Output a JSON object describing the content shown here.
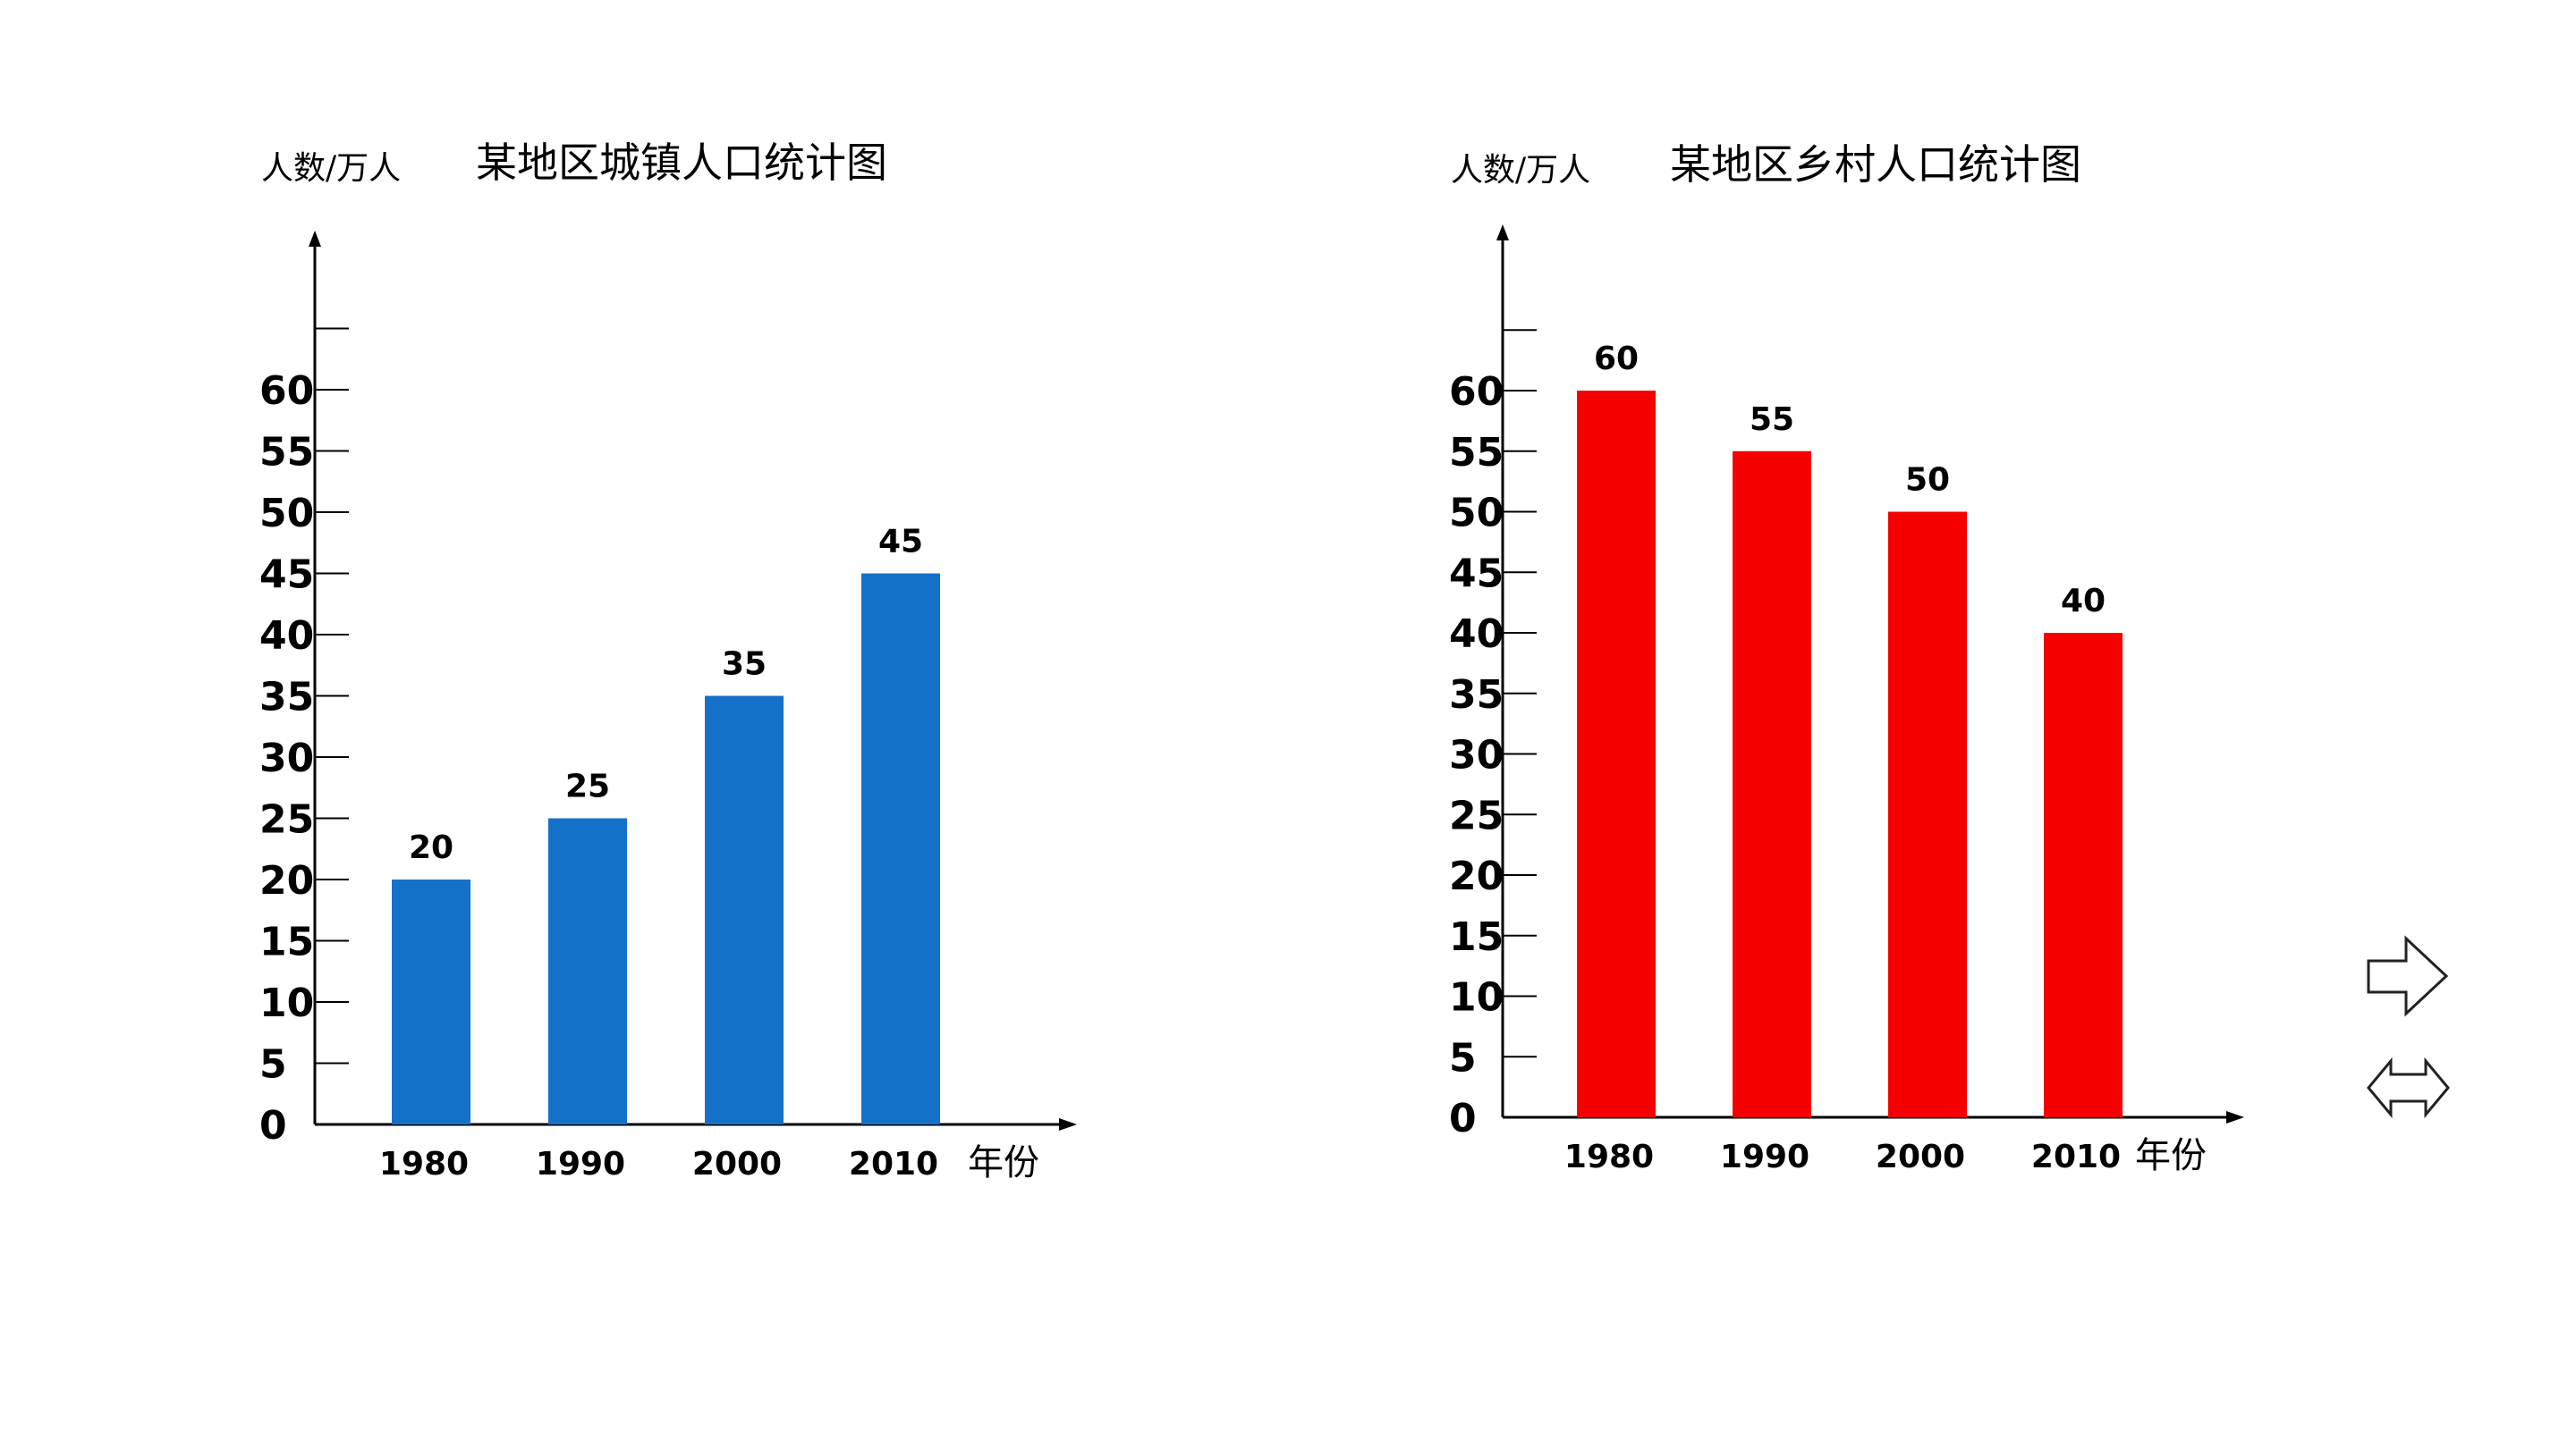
{
  "chart_data": [
    {
      "type": "bar",
      "title": "某地区城镇人口统计图",
      "ylabel": "人数/万人",
      "xlabel": "年份",
      "categories": [
        "1980",
        "1990",
        "2000",
        "2010"
      ],
      "values": [
        20,
        25,
        35,
        45
      ],
      "data_labels": [
        "20",
        "25",
        "35",
        "45"
      ],
      "yticks": [
        "0",
        "5",
        "10",
        "15",
        "20",
        "25",
        "30",
        "35",
        "40",
        "45",
        "50",
        "55",
        "60"
      ],
      "ylim": [
        0,
        65
      ],
      "color": "#1570c8",
      "grid": false,
      "legend": "none"
    },
    {
      "type": "bar",
      "title": "某地区乡村人口统计图",
      "ylabel": "人数/万人",
      "xlabel": "年份",
      "categories": [
        "1980",
        "1990",
        "2000",
        "2010"
      ],
      "values": [
        60,
        55,
        50,
        40
      ],
      "data_labels": [
        "60",
        "55",
        "50",
        "40"
      ],
      "yticks": [
        "0",
        "5",
        "10",
        "15",
        "20",
        "25",
        "30",
        "35",
        "40",
        "45",
        "50",
        "55",
        "60"
      ],
      "ylim": [
        0,
        65
      ],
      "color": "#f50000",
      "grid": false,
      "legend": "none"
    }
  ],
  "navigation": {
    "next_icon": "arrow-right-icon",
    "swap_icon": "double-arrow-icon"
  }
}
